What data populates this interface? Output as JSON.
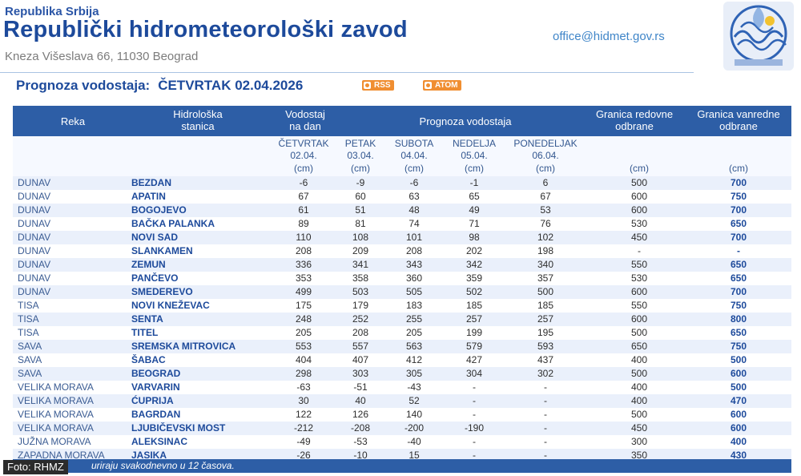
{
  "header": {
    "country": "Republika Srbija",
    "institution": "Republički hidrometeorološki zavod",
    "address": "Kneza Višeslava 66, 11030 Beograd",
    "email": "office@hidmet.gov.rs",
    "logo_icon": "rhmz-logo-icon"
  },
  "forecast": {
    "label": "Prognoza vodostaja:",
    "date": "ČETVRTAK  02.04.2026",
    "rss_label": "RSS",
    "atom_label": "ATOM"
  },
  "table": {
    "headers": {
      "river": "Reka",
      "station_1": "Hidrološka",
      "station_2": "stanica",
      "level_1": "Vodostaj",
      "level_2": "na dan",
      "forecast": "Prognoza vodostaja",
      "regular_1": "Granica redovne",
      "regular_2": "odbrane",
      "extra_1": "Granica vanredne",
      "extra_2": "odbrane"
    },
    "days": [
      {
        "name": "ČETVRTAK",
        "date": "02.04.",
        "unit": "(cm)"
      },
      {
        "name": "PETAK",
        "date": "03.04.",
        "unit": "(cm)"
      },
      {
        "name": "SUBOTA",
        "date": "04.04.",
        "unit": "(cm)"
      },
      {
        "name": "NEDELJA",
        "date": "05.04.",
        "unit": "(cm)"
      },
      {
        "name": "PONEDELJAK",
        "date": "06.04.",
        "unit": "(cm)"
      }
    ],
    "unit_regular": "(cm)",
    "unit_extra": "(cm)",
    "rows": [
      {
        "river": "DUNAV",
        "station": "BEZDAN",
        "v": [
          "-6",
          "-9",
          "-6",
          "-1",
          "6"
        ],
        "reg": "500",
        "ext": "700"
      },
      {
        "river": "DUNAV",
        "station": "APATIN",
        "v": [
          "67",
          "60",
          "63",
          "65",
          "67"
        ],
        "reg": "600",
        "ext": "750"
      },
      {
        "river": "DUNAV",
        "station": "BOGOJEVO",
        "v": [
          "61",
          "51",
          "48",
          "49",
          "53"
        ],
        "reg": "600",
        "ext": "700"
      },
      {
        "river": "DUNAV",
        "station": "BAČKA PALANKA",
        "v": [
          "89",
          "81",
          "74",
          "71",
          "76"
        ],
        "reg": "530",
        "ext": "650"
      },
      {
        "river": "DUNAV",
        "station": "NOVI SAD",
        "v": [
          "110",
          "108",
          "101",
          "98",
          "102"
        ],
        "reg": "450",
        "ext": "700"
      },
      {
        "river": "DUNAV",
        "station": "SLANKAMEN",
        "v": [
          "208",
          "209",
          "208",
          "202",
          "198"
        ],
        "reg": "-",
        "ext": "-"
      },
      {
        "river": "DUNAV",
        "station": "ZEMUN",
        "v": [
          "336",
          "341",
          "343",
          "342",
          "340"
        ],
        "reg": "550",
        "ext": "650"
      },
      {
        "river": "DUNAV",
        "station": "PANČEVO",
        "v": [
          "353",
          "358",
          "360",
          "359",
          "357"
        ],
        "reg": "530",
        "ext": "650"
      },
      {
        "river": "DUNAV",
        "station": "SMEDEREVO",
        "v": [
          "499",
          "503",
          "505",
          "502",
          "500"
        ],
        "reg": "600",
        "ext": "700"
      },
      {
        "river": "TISA",
        "station": "NOVI KNEŽEVAC",
        "v": [
          "175",
          "179",
          "183",
          "185",
          "185"
        ],
        "reg": "550",
        "ext": "750"
      },
      {
        "river": "TISA",
        "station": "SENTA",
        "v": [
          "248",
          "252",
          "255",
          "257",
          "257"
        ],
        "reg": "600",
        "ext": "800"
      },
      {
        "river": "TISA",
        "station": "TITEL",
        "v": [
          "205",
          "208",
          "205",
          "199",
          "195"
        ],
        "reg": "500",
        "ext": "650"
      },
      {
        "river": "SAVA",
        "station": "SREMSKA MITROVICA",
        "v": [
          "553",
          "557",
          "563",
          "579",
          "593"
        ],
        "reg": "650",
        "ext": "750"
      },
      {
        "river": "SAVA",
        "station": "ŠABAC",
        "v": [
          "404",
          "407",
          "412",
          "427",
          "437"
        ],
        "reg": "400",
        "ext": "500"
      },
      {
        "river": "SAVA",
        "station": "BEOGRAD",
        "v": [
          "298",
          "303",
          "305",
          "304",
          "302"
        ],
        "reg": "500",
        "ext": "600"
      },
      {
        "river": "VELIKA MORAVA",
        "station": "VARVARIN",
        "v": [
          "-63",
          "-51",
          "-43",
          "-",
          "-"
        ],
        "reg": "400",
        "ext": "500"
      },
      {
        "river": "VELIKA MORAVA",
        "station": "ĆUPRIJA",
        "v": [
          "30",
          "40",
          "52",
          "-",
          "-"
        ],
        "reg": "400",
        "ext": "470"
      },
      {
        "river": "VELIKA MORAVA",
        "station": "BAGRDAN",
        "v": [
          "122",
          "126",
          "140",
          "-",
          "-"
        ],
        "reg": "500",
        "ext": "600"
      },
      {
        "river": "VELIKA MORAVA",
        "station": "LJUBIČEVSKI MOST",
        "v": [
          "-212",
          "-208",
          "-200",
          "-190",
          "-"
        ],
        "reg": "450",
        "ext": "600"
      },
      {
        "river": "JUŽNA MORAVA",
        "station": "ALEKSINAC",
        "v": [
          "-49",
          "-53",
          "-40",
          "-",
          "-"
        ],
        "reg": "300",
        "ext": "400"
      },
      {
        "river": "ZAPADNA MORAVA",
        "station": "JASIKA",
        "v": [
          "-26",
          "-10",
          "15",
          "-",
          "-"
        ],
        "reg": "350",
        "ext": "430"
      }
    ]
  },
  "footer": {
    "note": "uriraju svakodnevno u 12 časova.",
    "credit": "Foto: RHMZ"
  },
  "colors": {
    "header_blue": "#2d5ea6",
    "title_blue": "#1d4a9b",
    "row_alt": "#eaf0fb",
    "badge_orange": "#f08e31"
  }
}
